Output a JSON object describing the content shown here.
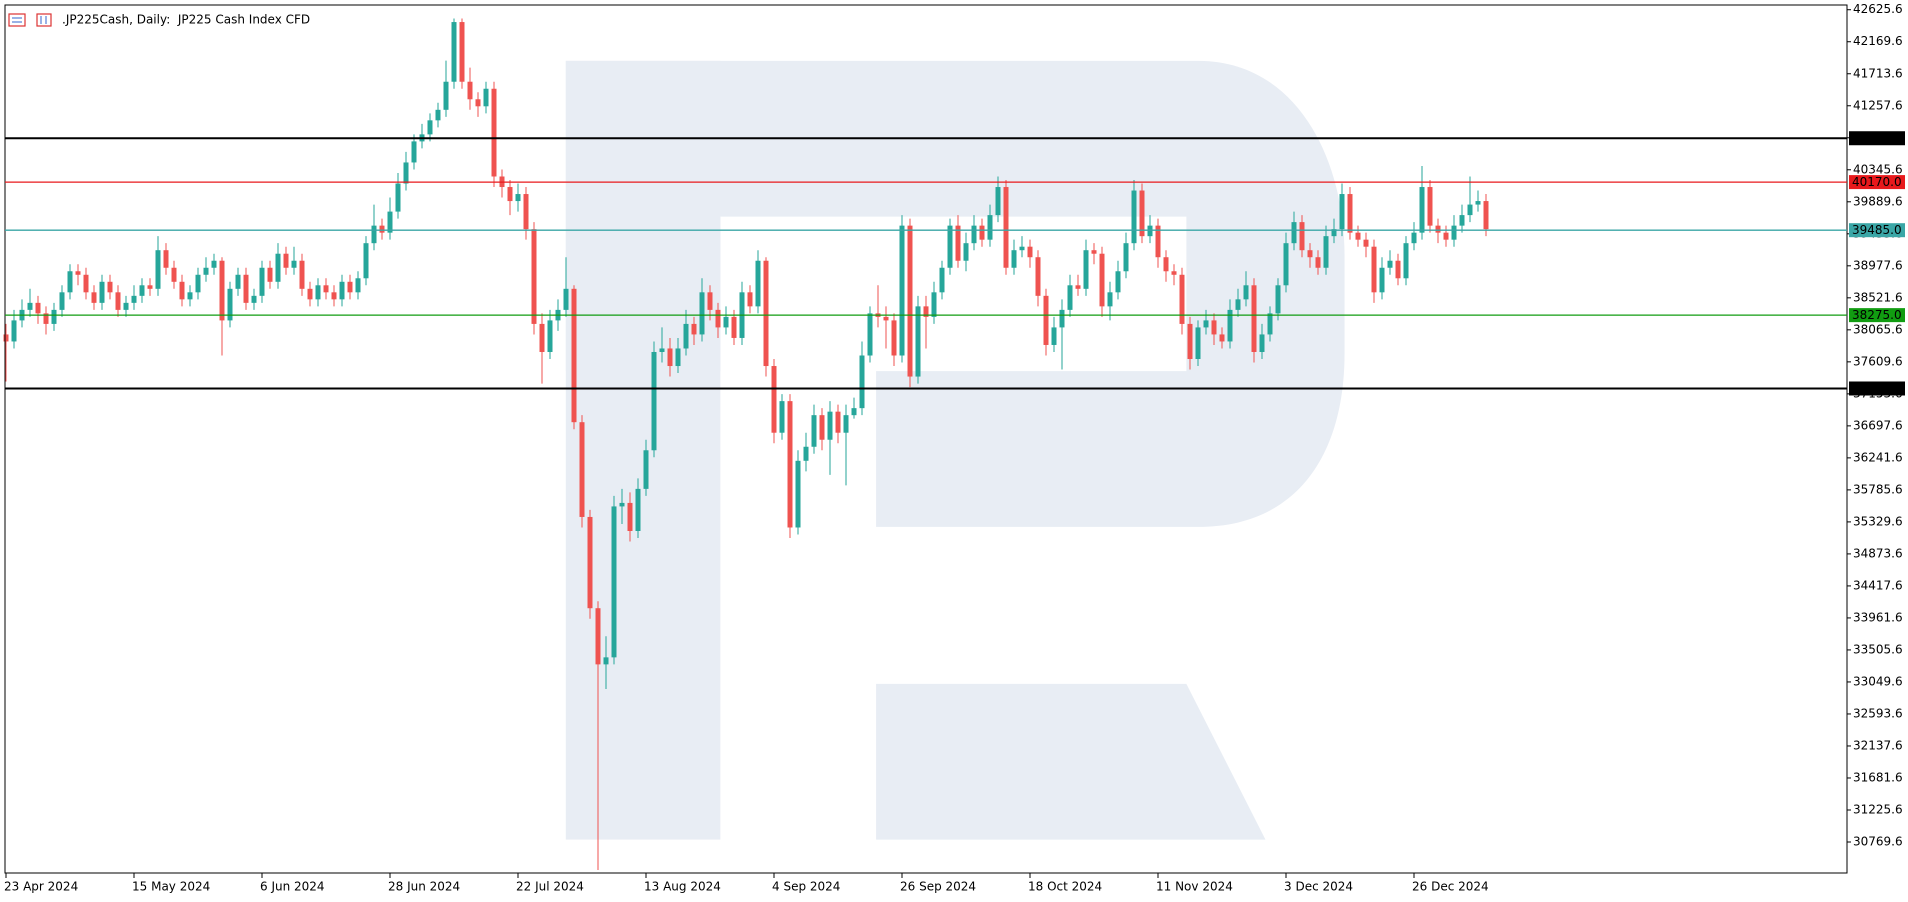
{
  "chart_data": {
    "type": "candlestick",
    "title": ".JP225Cash, Daily:  JP225 Cash Index CFD",
    "categories": [
      "23 Apr 2024",
      null,
      null,
      null,
      null,
      null,
      null,
      null,
      null,
      null,
      null,
      null,
      null,
      null,
      null,
      null,
      "15 May 2024",
      null,
      null,
      null,
      null,
      null,
      null,
      null,
      null,
      null,
      null,
      null,
      null,
      null,
      null,
      null,
      "6 Jun 2024",
      null,
      null,
      null,
      null,
      null,
      null,
      null,
      null,
      null,
      null,
      null,
      null,
      null,
      null,
      null,
      "28 Jun 2024",
      null,
      null,
      null,
      null,
      null,
      null,
      null,
      null,
      null,
      null,
      null,
      null,
      null,
      null,
      null,
      "22 Jul 2024",
      null,
      null,
      null,
      null,
      null,
      null,
      null,
      null,
      null,
      null,
      null,
      null,
      null,
      null,
      null,
      "13 Aug 2024",
      null,
      null,
      null,
      null,
      null,
      null,
      null,
      null,
      null,
      null,
      null,
      null,
      null,
      null,
      null,
      "4 Sep 2024",
      null,
      null,
      null,
      null,
      null,
      null,
      null,
      null,
      null,
      null,
      null,
      null,
      null,
      null,
      null,
      "26 Sep 2024",
      null,
      null,
      null,
      null,
      null,
      null,
      null,
      null,
      null,
      null,
      null,
      null,
      null,
      null,
      null,
      "18 Oct 2024",
      null,
      null,
      null,
      null,
      null,
      null,
      null,
      null,
      null,
      null,
      null,
      null,
      null,
      null,
      null,
      "11 Nov 2024",
      null,
      null,
      null,
      null,
      null,
      null,
      null,
      null,
      null,
      null,
      null,
      null,
      null,
      null,
      null,
      "3 Dec 2024",
      null,
      null,
      null,
      null,
      null,
      null,
      null,
      null,
      null,
      null,
      null,
      null,
      null,
      null,
      null,
      "26 Dec 2024",
      null,
      null,
      null,
      null,
      null,
      null,
      null,
      null,
      null
    ],
    "open": [
      38000,
      37900,
      38200,
      38350,
      38450,
      38300,
      38150,
      38350,
      38600,
      38900,
      38850,
      38600,
      38450,
      38750,
      38600,
      38350,
      38450,
      38550,
      38700,
      38650,
      39200,
      38950,
      38750,
      38500,
      38600,
      38850,
      38950,
      39050,
      38200,
      38650,
      38850,
      38450,
      38550,
      38950,
      38750,
      39150,
      38950,
      39050,
      38650,
      38500,
      38700,
      38600,
      38500,
      38750,
      38600,
      38800,
      39300,
      39550,
      39450,
      39750,
      40150,
      40450,
      40750,
      40850,
      41050,
      41200,
      41600,
      42450,
      41600,
      41350,
      41250,
      41500,
      40250,
      40100,
      39900,
      40000,
      39500,
      38150,
      37750,
      38200,
      38350,
      38650,
      36750,
      35400,
      34100,
      33300,
      33400,
      35550,
      35600,
      35200,
      35800,
      36350,
      37750,
      37800,
      37550,
      37800,
      38150,
      38000,
      38600,
      38350,
      38100,
      38250,
      37950,
      38600,
      38400,
      39050,
      37550,
      36600,
      37050,
      35250,
      36200,
      36400,
      36850,
      36500,
      36900,
      36600,
      36850,
      36950,
      37700,
      38300,
      38250,
      38200,
      37700,
      39550,
      37400,
      38400,
      38250,
      38600,
      38950,
      39550,
      39050,
      39300,
      39550,
      39350,
      39700,
      40100,
      38950,
      39200,
      39250,
      39100,
      38550,
      37850,
      38100,
      38350,
      38700,
      38650,
      39200,
      39150,
      38400,
      38600,
      38900,
      39300,
      40050,
      39400,
      39550,
      39100,
      38900,
      38850,
      38150,
      37650,
      38100,
      38200,
      38000,
      37900,
      38350,
      38500,
      38700,
      37750,
      38000,
      38300,
      38700,
      39300,
      39600,
      39200,
      39100,
      38950,
      39400,
      39500,
      40000,
      39450,
      39350,
      39250,
      38600,
      38950,
      39050,
      38800,
      39300,
      39450,
      40100,
      39550,
      39450,
      39350,
      39550,
      39700,
      39850,
      39900
    ],
    "high": [
      38150,
      38350,
      38500,
      38650,
      38550,
      38400,
      38450,
      38700,
      39000,
      39000,
      38950,
      38700,
      38850,
      38850,
      38700,
      38550,
      38700,
      38800,
      38800,
      39400,
      39300,
      39050,
      38850,
      38700,
      38950,
      39100,
      39150,
      39100,
      38750,
      38950,
      38950,
      38650,
      39050,
      39050,
      39300,
      39250,
      39250,
      39150,
      38750,
      38800,
      38800,
      38700,
      38850,
      38850,
      38900,
      39400,
      39850,
      39650,
      39950,
      40300,
      40600,
      40850,
      41000,
      41150,
      41300,
      41900,
      42500,
      42500,
      41800,
      41450,
      41600,
      41600,
      40350,
      40200,
      40150,
      40100,
      39600,
      38300,
      38350,
      38500,
      39100,
      38700,
      36850,
      35500,
      34200,
      33700,
      35700,
      35800,
      35750,
      35950,
      36500,
      37900,
      38100,
      37950,
      37950,
      38350,
      38250,
      38800,
      38700,
      38450,
      38400,
      38350,
      38750,
      38700,
      39200,
      39100,
      37650,
      37150,
      37150,
      36350,
      36600,
      37000,
      36950,
      37050,
      37000,
      37000,
      37100,
      37900,
      38400,
      38700,
      38400,
      38300,
      39700,
      39650,
      38550,
      38550,
      38750,
      39050,
      39650,
      39700,
      39450,
      39700,
      39650,
      39850,
      40250,
      40200,
      39350,
      39400,
      39350,
      39200,
      38650,
      38250,
      38500,
      38850,
      38850,
      39350,
      39300,
      39250,
      38750,
      39050,
      39450,
      40200,
      40150,
      39700,
      39650,
      39200,
      39000,
      38950,
      38250,
      38200,
      38350,
      38300,
      38100,
      38500,
      38650,
      38900,
      38800,
      38150,
      38400,
      38800,
      39450,
      39750,
      39700,
      39300,
      39200,
      39550,
      39650,
      40150,
      40100,
      39550,
      39450,
      39350,
      39100,
      39200,
      39150,
      39400,
      39600,
      40400,
      40200,
      39650,
      39550,
      39700,
      39850,
      40250,
      40050,
      40000
    ],
    "low": [
      37330,
      37800,
      38100,
      38250,
      38150,
      38000,
      38050,
      38250,
      38500,
      38700,
      38500,
      38350,
      38350,
      38500,
      38250,
      38250,
      38350,
      38450,
      38550,
      38550,
      38850,
      38650,
      38400,
      38400,
      38500,
      38750,
      38850,
      37700,
      38100,
      38550,
      38350,
      38350,
      38450,
      38650,
      38650,
      38850,
      38850,
      38550,
      38400,
      38400,
      38500,
      38400,
      38400,
      38500,
      38500,
      38700,
      39200,
      39350,
      39350,
      39650,
      40050,
      40350,
      40650,
      40750,
      40950,
      41100,
      41500,
      41500,
      41200,
      41100,
      41150,
      40100,
      39950,
      39700,
      39750,
      39350,
      38000,
      37300,
      37650,
      38050,
      38250,
      36650,
      35250,
      33950,
      30370,
      32950,
      33300,
      35300,
      35050,
      35100,
      35700,
      36250,
      37600,
      37400,
      37450,
      37700,
      37850,
      37900,
      38200,
      37950,
      38000,
      37850,
      37850,
      38300,
      38300,
      37400,
      36450,
      36500,
      35100,
      35150,
      36050,
      36300,
      36350,
      36000,
      36450,
      35850,
      36800,
      36850,
      37600,
      38100,
      37800,
      37550,
      37600,
      37250,
      37300,
      37800,
      38150,
      38500,
      38850,
      38950,
      38900,
      39200,
      39250,
      39250,
      39600,
      38850,
      38850,
      39100,
      38950,
      38400,
      37700,
      37750,
      37500,
      38250,
      38550,
      38550,
      39000,
      38250,
      38200,
      38500,
      38800,
      39200,
      39300,
      39300,
      38950,
      38750,
      38700,
      38000,
      37500,
      37550,
      38000,
      37850,
      37800,
      37800,
      38250,
      38400,
      37600,
      37650,
      37900,
      38200,
      38600,
      39200,
      39100,
      38950,
      38850,
      38850,
      39300,
      39400,
      39350,
      39250,
      39100,
      38450,
      38500,
      38850,
      38700,
      38700,
      39200,
      39350,
      39450,
      39300,
      39250,
      39250,
      39450,
      39600,
      39750,
      39400
    ],
    "close": [
      37900,
      38200,
      38350,
      38450,
      38300,
      38150,
      38350,
      38600,
      38900,
      38850,
      38600,
      38450,
      38750,
      38600,
      38350,
      38450,
      38550,
      38700,
      38650,
      39200,
      38950,
      38750,
      38500,
      38600,
      38850,
      38950,
      39050,
      38200,
      38650,
      38850,
      38450,
      38550,
      38950,
      38750,
      39150,
      38950,
      39050,
      38650,
      38500,
      38700,
      38600,
      38500,
      38750,
      38600,
      38800,
      39300,
      39550,
      39450,
      39750,
      40150,
      40450,
      40750,
      40850,
      41050,
      41200,
      41600,
      42450,
      41600,
      41350,
      41250,
      41500,
      40250,
      40100,
      39900,
      40000,
      39500,
      38150,
      37750,
      38200,
      38350,
      38650,
      36750,
      35400,
      34100,
      33300,
      33400,
      35550,
      35600,
      35200,
      35800,
      36350,
      37750,
      37800,
      37550,
      37800,
      38150,
      38000,
      38600,
      38350,
      38100,
      38250,
      37950,
      38600,
      38400,
      39050,
      37550,
      36600,
      37050,
      35250,
      36200,
      36400,
      36850,
      36500,
      36900,
      36600,
      36850,
      36950,
      37700,
      38300,
      38250,
      38200,
      37700,
      39550,
      37400,
      38400,
      38250,
      38600,
      38950,
      39550,
      39050,
      39300,
      39550,
      39350,
      39700,
      40100,
      38950,
      39200,
      39250,
      39100,
      38550,
      37850,
      38100,
      38350,
      38700,
      38650,
      39200,
      39150,
      38400,
      38600,
      38900,
      39300,
      40050,
      39400,
      39550,
      39100,
      38900,
      38850,
      38150,
      37650,
      38100,
      38200,
      38000,
      37900,
      38350,
      38500,
      38700,
      37750,
      38000,
      38300,
      38700,
      39300,
      39600,
      39200,
      39100,
      38950,
      39400,
      39500,
      40000,
      39450,
      39350,
      39250,
      38600,
      38950,
      39050,
      38800,
      39300,
      39450,
      40100,
      39550,
      39450,
      39350,
      39550,
      39700,
      39850,
      39900,
      39500
    ],
    "up_color": "#26a69a",
    "down_color": "#ef5350",
    "ylim": [
      30328,
      42693
    ],
    "yticks": [
      42625.6,
      42169.6,
      41713.6,
      41257.6,
      40801.6,
      40345.6,
      39889.6,
      39433.6,
      38977.6,
      38521.6,
      38065.6,
      37609.6,
      37153.6,
      36697.6,
      36241.6,
      35785.6,
      35329.6,
      34873.6,
      34417.6,
      33961.6,
      33505.6,
      33049.6,
      32593.6,
      32137.6,
      31681.6,
      31225.6,
      30769.6
    ],
    "levels": [
      {
        "value": 40795,
        "label": "40795.0",
        "color": "#000000"
      },
      {
        "value": 40170,
        "label": "40170.0",
        "color": "#e8191c"
      },
      {
        "value": 39485,
        "label": "39485.0",
        "color": "#3aa6a6"
      },
      {
        "value": 38275,
        "label": "38275.0",
        "color": "#119c11"
      },
      {
        "value": 37230,
        "label": "37230.0",
        "color": "#000000"
      }
    ]
  }
}
